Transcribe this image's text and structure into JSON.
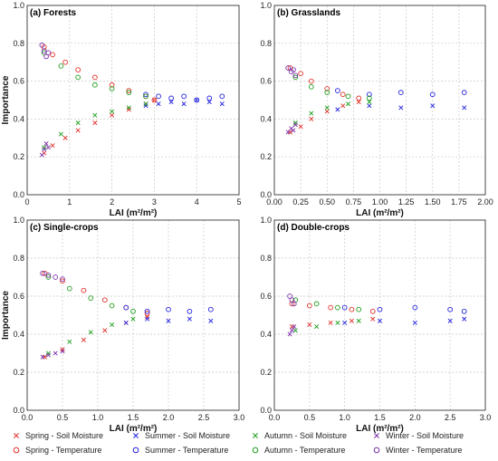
{
  "legend": [
    {
      "label": "Spring - Soil Moisture",
      "marker": "x",
      "color": "#e0312a"
    },
    {
      "label": "Spring - Temperature",
      "marker": "o",
      "color": "#e0312a"
    },
    {
      "label": "Summer - Soil Moisture",
      "marker": "x",
      "color": "#2323e0"
    },
    {
      "label": "Summer - Temperature",
      "marker": "o",
      "color": "#2323e0"
    },
    {
      "label": "Autumn - Soil Moisture",
      "marker": "x",
      "color": "#1f9e1f"
    },
    {
      "label": "Autumn - Temperature",
      "marker": "o",
      "color": "#1f9e1f"
    },
    {
      "label": "Winter - Soil Moisture",
      "marker": "x",
      "color": "#7b2fa8"
    },
    {
      "label": "Winter - Temperature",
      "marker": "o",
      "color": "#7b2fa8"
    }
  ],
  "chart_data": [
    {
      "type": "scatter",
      "title": "(a) Forests",
      "xlabel": "LAI (m²/m²)",
      "ylabel": "Importance",
      "xlim": [
        0,
        5
      ],
      "ylim": [
        0,
        1.0
      ],
      "xticks": [
        "0",
        "1",
        "2",
        "3",
        "4",
        "5"
      ],
      "yticks": [
        "0.0",
        "0.2",
        "0.4",
        "0.6",
        "0.8",
        "1.0"
      ],
      "grid": true,
      "series": [
        {
          "name": "Spring - Soil Moisture",
          "points": [
            [
              0.4,
              0.22
            ],
            [
              0.6,
              0.26
            ],
            [
              0.9,
              0.3
            ],
            [
              1.2,
              0.34
            ],
            [
              1.6,
              0.38
            ],
            [
              2.0,
              0.42
            ],
            [
              2.4,
              0.45
            ],
            [
              2.8,
              0.48
            ],
            [
              3.0,
              0.5
            ]
          ]
        },
        {
          "name": "Spring - Temperature",
          "points": [
            [
              0.4,
              0.78
            ],
            [
              0.6,
              0.74
            ],
            [
              0.9,
              0.7
            ],
            [
              1.2,
              0.66
            ],
            [
              1.6,
              0.62
            ],
            [
              2.0,
              0.58
            ],
            [
              2.4,
              0.55
            ],
            [
              2.8,
              0.52
            ],
            [
              3.0,
              0.5
            ]
          ]
        },
        {
          "name": "Summer - Soil Moisture",
          "points": [
            [
              2.8,
              0.47
            ],
            [
              3.1,
              0.48
            ],
            [
              3.4,
              0.49
            ],
            [
              3.7,
              0.48
            ],
            [
              4.0,
              0.5
            ],
            [
              4.3,
              0.49
            ],
            [
              4.6,
              0.48
            ]
          ]
        },
        {
          "name": "Summer - Temperature",
          "points": [
            [
              2.8,
              0.53
            ],
            [
              3.1,
              0.52
            ],
            [
              3.4,
              0.51
            ],
            [
              3.7,
              0.52
            ],
            [
              4.0,
              0.5
            ],
            [
              4.3,
              0.51
            ],
            [
              4.6,
              0.52
            ]
          ]
        },
        {
          "name": "Autumn - Soil Moisture",
          "points": [
            [
              0.4,
              0.25
            ],
            [
              0.8,
              0.32
            ],
            [
              1.2,
              0.38
            ],
            [
              1.6,
              0.42
            ],
            [
              2.0,
              0.44
            ],
            [
              2.4,
              0.46
            ],
            [
              2.8,
              0.48
            ]
          ]
        },
        {
          "name": "Autumn - Temperature",
          "points": [
            [
              0.4,
              0.75
            ],
            [
              0.8,
              0.68
            ],
            [
              1.2,
              0.62
            ],
            [
              1.6,
              0.58
            ],
            [
              2.0,
              0.56
            ],
            [
              2.4,
              0.54
            ],
            [
              2.8,
              0.52
            ]
          ]
        },
        {
          "name": "Winter - Soil Moisture",
          "points": [
            [
              0.35,
              0.21
            ],
            [
              0.4,
              0.24
            ],
            [
              0.45,
              0.27
            ],
            [
              0.5,
              0.25
            ]
          ]
        },
        {
          "name": "Winter - Temperature",
          "points": [
            [
              0.35,
              0.79
            ],
            [
              0.4,
              0.76
            ],
            [
              0.45,
              0.73
            ],
            [
              0.5,
              0.75
            ]
          ]
        }
      ]
    },
    {
      "type": "scatter",
      "title": "(b) Grasslands",
      "xlabel": "LAI (m²/m²)",
      "ylabel": "",
      "xlim": [
        0,
        2.0
      ],
      "ylim": [
        0,
        1.0
      ],
      "xticks": [
        "0.00",
        "0.25",
        "0.50",
        "0.75",
        "1.00",
        "1.25",
        "1.50",
        "1.75",
        "2.00"
      ],
      "yticks": [
        "0.0",
        "0.2",
        "0.4",
        "0.6",
        "0.8",
        "1.0"
      ],
      "grid": true,
      "series": [
        {
          "name": "Spring - Soil Moisture",
          "points": [
            [
              0.15,
              0.33
            ],
            [
              0.25,
              0.36
            ],
            [
              0.35,
              0.4
            ],
            [
              0.5,
              0.44
            ],
            [
              0.65,
              0.47
            ],
            [
              0.8,
              0.49
            ]
          ]
        },
        {
          "name": "Spring - Temperature",
          "points": [
            [
              0.15,
              0.67
            ],
            [
              0.25,
              0.64
            ],
            [
              0.35,
              0.6
            ],
            [
              0.5,
              0.56
            ],
            [
              0.65,
              0.53
            ],
            [
              0.8,
              0.51
            ]
          ]
        },
        {
          "name": "Summer - Soil Moisture",
          "points": [
            [
              0.6,
              0.45
            ],
            [
              0.9,
              0.47
            ],
            [
              1.2,
              0.46
            ],
            [
              1.5,
              0.47
            ],
            [
              1.8,
              0.46
            ]
          ]
        },
        {
          "name": "Summer - Temperature",
          "points": [
            [
              0.6,
              0.55
            ],
            [
              0.9,
              0.53
            ],
            [
              1.2,
              0.54
            ],
            [
              1.5,
              0.53
            ],
            [
              1.8,
              0.54
            ]
          ]
        },
        {
          "name": "Autumn - Soil Moisture",
          "points": [
            [
              0.2,
              0.38
            ],
            [
              0.35,
              0.43
            ],
            [
              0.5,
              0.46
            ],
            [
              0.7,
              0.48
            ],
            [
              0.9,
              0.49
            ]
          ]
        },
        {
          "name": "Autumn - Temperature",
          "points": [
            [
              0.2,
              0.62
            ],
            [
              0.35,
              0.57
            ],
            [
              0.5,
              0.54
            ],
            [
              0.7,
              0.52
            ],
            [
              0.9,
              0.51
            ]
          ]
        },
        {
          "name": "Winter - Soil Moisture",
          "points": [
            [
              0.13,
              0.33
            ],
            [
              0.16,
              0.35
            ],
            [
              0.2,
              0.37
            ],
            [
              0.18,
              0.34
            ]
          ]
        },
        {
          "name": "Winter - Temperature",
          "points": [
            [
              0.13,
              0.67
            ],
            [
              0.16,
              0.65
            ],
            [
              0.2,
              0.63
            ],
            [
              0.18,
              0.66
            ]
          ]
        }
      ]
    },
    {
      "type": "scatter",
      "title": "(c) Single-crops",
      "xlabel": "LAI (m²/m²)",
      "ylabel": "Importance",
      "xlim": [
        0,
        3.0
      ],
      "ylim": [
        0,
        1.0
      ],
      "xticks": [
        "0.0",
        "0.5",
        "1.0",
        "1.5",
        "2.0",
        "2.5",
        "3.0"
      ],
      "yticks": [
        "0.0",
        "0.2",
        "0.4",
        "0.6",
        "0.8",
        "1.0"
      ],
      "grid": true,
      "series": [
        {
          "name": "Spring - Soil Moisture",
          "points": [
            [
              0.25,
              0.28
            ],
            [
              0.5,
              0.32
            ],
            [
              0.8,
              0.37
            ],
            [
              1.1,
              0.42
            ],
            [
              1.4,
              0.46
            ],
            [
              1.7,
              0.49
            ]
          ]
        },
        {
          "name": "Spring - Temperature",
          "points": [
            [
              0.25,
              0.72
            ],
            [
              0.5,
              0.68
            ],
            [
              0.8,
              0.63
            ],
            [
              1.1,
              0.58
            ],
            [
              1.4,
              0.54
            ],
            [
              1.7,
              0.51
            ]
          ]
        },
        {
          "name": "Summer - Soil Moisture",
          "points": [
            [
              1.4,
              0.46
            ],
            [
              1.7,
              0.48
            ],
            [
              2.0,
              0.47
            ],
            [
              2.3,
              0.48
            ],
            [
              2.6,
              0.47
            ]
          ]
        },
        {
          "name": "Summer - Temperature",
          "points": [
            [
              1.4,
              0.54
            ],
            [
              1.7,
              0.52
            ],
            [
              2.0,
              0.53
            ],
            [
              2.3,
              0.52
            ],
            [
              2.6,
              0.53
            ]
          ]
        },
        {
          "name": "Autumn - Soil Moisture",
          "points": [
            [
              0.3,
              0.3
            ],
            [
              0.6,
              0.36
            ],
            [
              0.9,
              0.41
            ],
            [
              1.2,
              0.45
            ],
            [
              1.5,
              0.48
            ]
          ]
        },
        {
          "name": "Autumn - Temperature",
          "points": [
            [
              0.3,
              0.7
            ],
            [
              0.6,
              0.64
            ],
            [
              0.9,
              0.59
            ],
            [
              1.2,
              0.55
            ],
            [
              1.5,
              0.52
            ]
          ]
        },
        {
          "name": "Winter - Soil Moisture",
          "points": [
            [
              0.22,
              0.28
            ],
            [
              0.3,
              0.29
            ],
            [
              0.4,
              0.3
            ],
            [
              0.5,
              0.31
            ]
          ]
        },
        {
          "name": "Winter - Temperature",
          "points": [
            [
              0.22,
              0.72
            ],
            [
              0.3,
              0.71
            ],
            [
              0.4,
              0.7
            ],
            [
              0.5,
              0.69
            ]
          ]
        }
      ]
    },
    {
      "type": "scatter",
      "title": "(d) Double-crops",
      "xlabel": "LAI (m²/m²)",
      "ylabel": "",
      "xlim": [
        0,
        3.0
      ],
      "ylim": [
        0,
        1.0
      ],
      "xticks": [
        "0.0",
        "0.5",
        "1.0",
        "1.5",
        "2.0",
        "2.5",
        "3.0"
      ],
      "yticks": [
        "0.0",
        "0.2",
        "0.4",
        "0.6",
        "0.8",
        "1.0"
      ],
      "grid": true,
      "series": [
        {
          "name": "Spring - Soil Moisture",
          "points": [
            [
              0.25,
              0.44
            ],
            [
              0.5,
              0.45
            ],
            [
              0.8,
              0.46
            ],
            [
              1.1,
              0.47
            ],
            [
              1.4,
              0.48
            ]
          ]
        },
        {
          "name": "Spring - Temperature",
          "points": [
            [
              0.25,
              0.56
            ],
            [
              0.5,
              0.55
            ],
            [
              0.8,
              0.54
            ],
            [
              1.1,
              0.53
            ],
            [
              1.4,
              0.52
            ]
          ]
        },
        {
          "name": "Summer - Soil Moisture",
          "points": [
            [
              1.0,
              0.46
            ],
            [
              1.5,
              0.47
            ],
            [
              2.0,
              0.46
            ],
            [
              2.5,
              0.47
            ],
            [
              2.7,
              0.48
            ]
          ]
        },
        {
          "name": "Summer - Temperature",
          "points": [
            [
              1.0,
              0.54
            ],
            [
              1.5,
              0.53
            ],
            [
              2.0,
              0.54
            ],
            [
              2.5,
              0.53
            ],
            [
              2.7,
              0.52
            ]
          ]
        },
        {
          "name": "Autumn - Soil Moisture",
          "points": [
            [
              0.3,
              0.42
            ],
            [
              0.6,
              0.44
            ],
            [
              0.9,
              0.46
            ],
            [
              1.2,
              0.47
            ]
          ]
        },
        {
          "name": "Autumn - Temperature",
          "points": [
            [
              0.3,
              0.58
            ],
            [
              0.6,
              0.56
            ],
            [
              0.9,
              0.54
            ],
            [
              1.2,
              0.53
            ]
          ]
        },
        {
          "name": "Winter - Soil Moisture",
          "points": [
            [
              0.22,
              0.4
            ],
            [
              0.25,
              0.42
            ],
            [
              0.28,
              0.44
            ]
          ]
        },
        {
          "name": "Winter - Temperature",
          "points": [
            [
              0.22,
              0.6
            ],
            [
              0.25,
              0.58
            ],
            [
              0.28,
              0.56
            ]
          ]
        }
      ]
    }
  ]
}
